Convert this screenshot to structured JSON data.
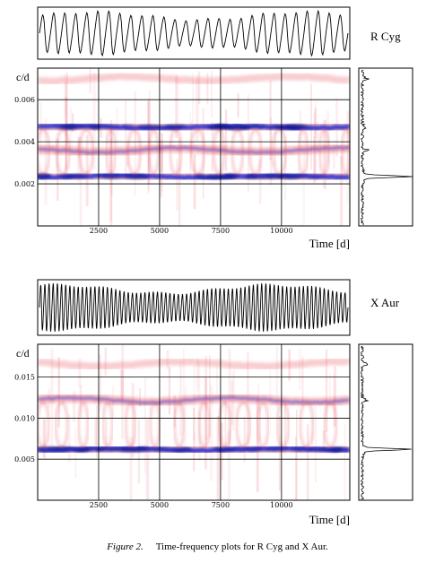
{
  "caption": {
    "figure_label": "Figure 2.",
    "text": "Time-frequency plots for R Cyg and X Aur."
  },
  "colors": {
    "ridge_blue": "#1f2fd6",
    "ridge_red": "#e8505a",
    "frame": "#000000"
  },
  "chart_data": [
    {
      "type": "heatmap",
      "star": "R Cyg",
      "light_curve_cycles": 28,
      "ylabel": "c/d",
      "xlabel": "Time [d]",
      "xlim": [
        0,
        12800
      ],
      "ylim": [
        0,
        0.0075
      ],
      "x_ticks": [
        2500,
        5000,
        7500,
        10000
      ],
      "x_tick_labels": [
        "2500",
        "5000",
        "7500",
        "10000"
      ],
      "y_ticks": [
        0.002,
        0.004,
        0.006
      ],
      "y_tick_labels": [
        "0.002",
        "0.004",
        "0.006"
      ],
      "grid": true,
      "ridges": [
        {
          "freq": 0.00235,
          "strength": "strong"
        },
        {
          "freq": 0.0047,
          "strength": "strong"
        },
        {
          "freq": 0.0036,
          "strength": "moderate"
        },
        {
          "freq": 0.007,
          "strength": "weak"
        }
      ],
      "spectrum_peak_freq": 0.00235
    },
    {
      "type": "heatmap",
      "star": "X Aur",
      "light_curve_cycles": 74,
      "ylabel": "c/d",
      "xlabel": "Time [d]",
      "xlim": [
        0,
        12800
      ],
      "ylim": [
        0,
        0.019
      ],
      "x_ticks": [
        2500,
        5000,
        7500,
        10000
      ],
      "x_tick_labels": [
        "2500",
        "5000",
        "7500",
        "10000"
      ],
      "y_ticks": [
        0.005,
        0.01,
        0.015
      ],
      "y_tick_labels": [
        "0.005",
        "0.010",
        "0.015"
      ],
      "grid": true,
      "ridges": [
        {
          "freq": 0.0062,
          "strength": "strong"
        },
        {
          "freq": 0.0122,
          "strength": "moderate"
        },
        {
          "freq": 0.0166,
          "strength": "weak"
        }
      ],
      "spectrum_peak_freq": 0.0062
    }
  ]
}
